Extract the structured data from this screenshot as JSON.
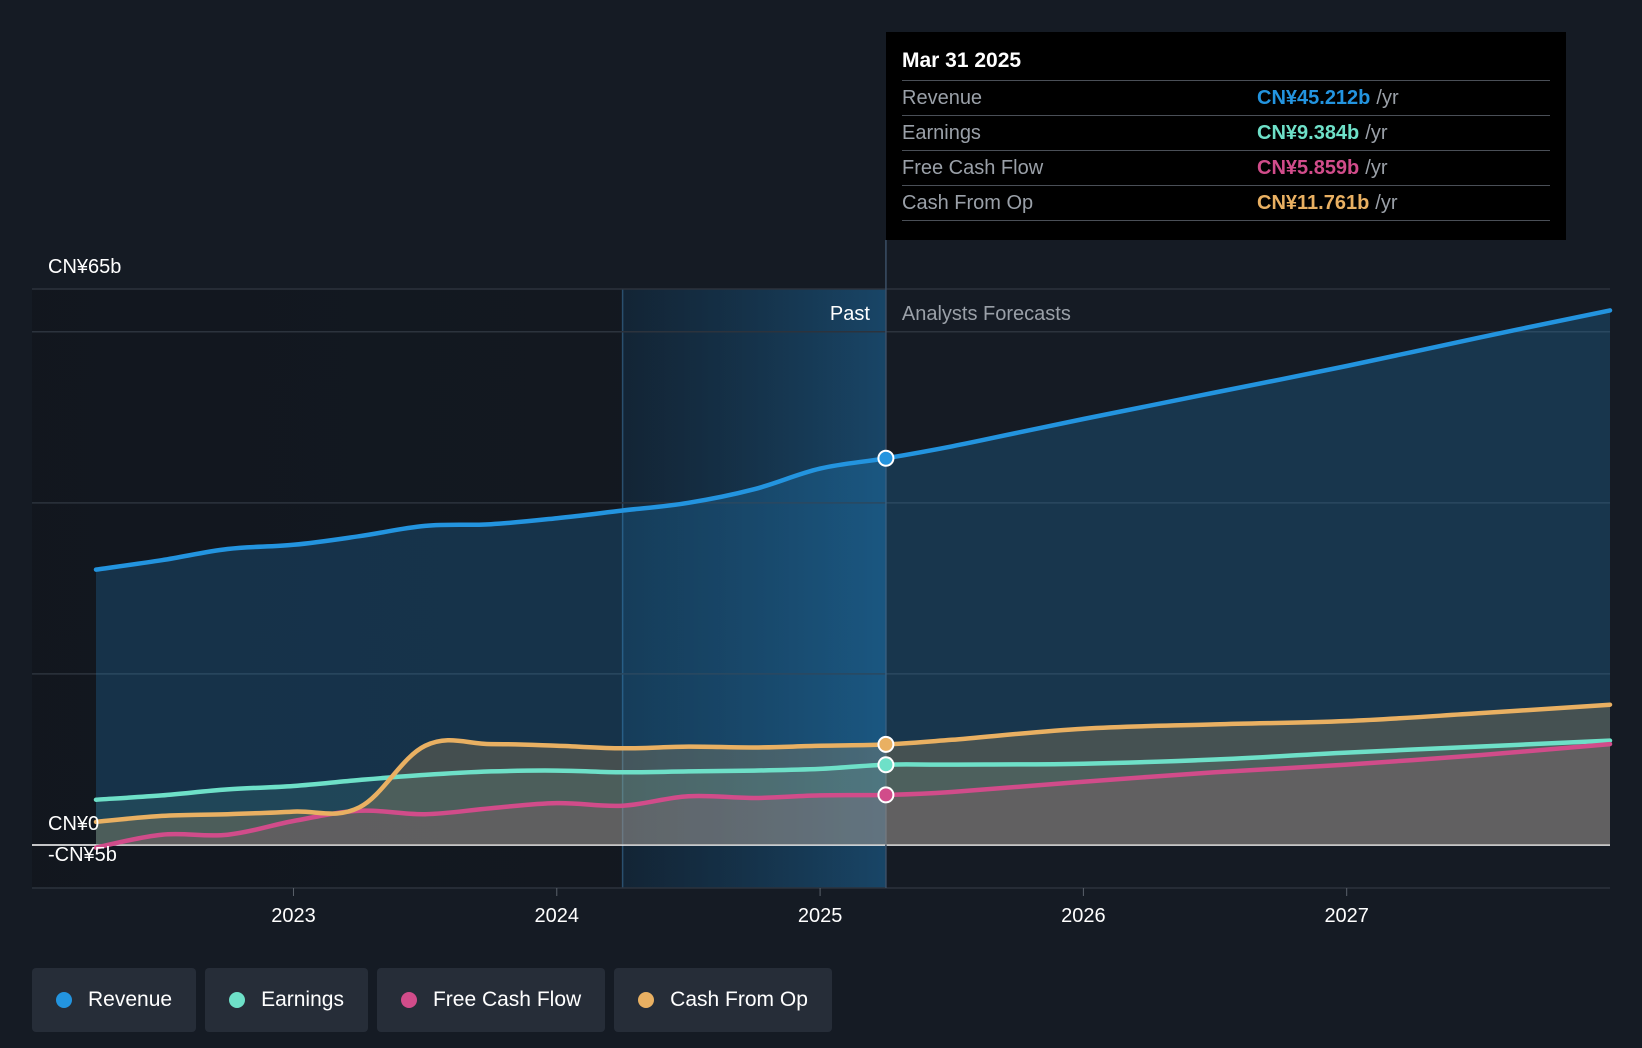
{
  "chart_data": {
    "type": "line",
    "y_unit_prefix": "CN¥",
    "ylim": [
      -5,
      65
    ],
    "y_ticks": [
      {
        "value": 65,
        "label": "CN¥65b"
      },
      {
        "value": 0,
        "label": "CN¥0"
      },
      {
        "value": -5,
        "label": "-CN¥5b"
      }
    ],
    "x_range": [
      2022.0,
      2028.0
    ],
    "x_ticks": [
      {
        "value": 2023,
        "label": "2023"
      },
      {
        "value": 2024,
        "label": "2024"
      },
      {
        "value": 2025,
        "label": "2025"
      },
      {
        "value": 2026,
        "label": "2026"
      },
      {
        "value": 2027,
        "label": "2027"
      }
    ],
    "divider_x": 2025.25,
    "highlight_start_x": 2024.25,
    "past_label": "Past",
    "forecast_label": "Analysts Forecasts",
    "series": [
      {
        "name": "Revenue",
        "color": "#2394df",
        "points": [
          [
            2022.25,
            32.2
          ],
          [
            2022.5,
            33.3
          ],
          [
            2022.75,
            34.6
          ],
          [
            2023.0,
            35.1
          ],
          [
            2023.25,
            36.1
          ],
          [
            2023.5,
            37.3
          ],
          [
            2023.75,
            37.5
          ],
          [
            2024.0,
            38.2
          ],
          [
            2024.25,
            39.1
          ],
          [
            2024.5,
            40.0
          ],
          [
            2024.75,
            41.6
          ],
          [
            2025.0,
            44.0
          ],
          [
            2025.25,
            45.212
          ],
          [
            2025.5,
            46.6
          ],
          [
            2025.75,
            48.2
          ],
          [
            2026.0,
            49.8
          ],
          [
            2026.5,
            52.9
          ],
          [
            2027.0,
            56.0
          ],
          [
            2027.5,
            59.3
          ],
          [
            2028.0,
            62.5
          ]
        ]
      },
      {
        "name": "Earnings",
        "color": "#6ee0c8",
        "points": [
          [
            2022.25,
            5.3
          ],
          [
            2022.5,
            5.8
          ],
          [
            2022.75,
            6.5
          ],
          [
            2023.0,
            6.9
          ],
          [
            2023.25,
            7.6
          ],
          [
            2023.5,
            8.2
          ],
          [
            2023.75,
            8.6
          ],
          [
            2024.0,
            8.7
          ],
          [
            2024.25,
            8.5
          ],
          [
            2024.5,
            8.6
          ],
          [
            2024.75,
            8.7
          ],
          [
            2025.0,
            8.9
          ],
          [
            2025.25,
            9.384
          ],
          [
            2025.5,
            9.4
          ],
          [
            2026.0,
            9.5
          ],
          [
            2026.5,
            10.0
          ],
          [
            2027.0,
            10.8
          ],
          [
            2027.5,
            11.5
          ],
          [
            2028.0,
            12.2
          ]
        ]
      },
      {
        "name": "Free Cash Flow",
        "color": "#d14c8a",
        "points": [
          [
            2022.25,
            -0.3
          ],
          [
            2022.5,
            1.2
          ],
          [
            2022.75,
            1.2
          ],
          [
            2023.0,
            2.8
          ],
          [
            2023.25,
            4.0
          ],
          [
            2023.5,
            3.6
          ],
          [
            2023.75,
            4.3
          ],
          [
            2024.0,
            4.9
          ],
          [
            2024.25,
            4.6
          ],
          [
            2024.5,
            5.7
          ],
          [
            2024.75,
            5.5
          ],
          [
            2025.0,
            5.8
          ],
          [
            2025.25,
            5.859
          ],
          [
            2025.5,
            6.2
          ],
          [
            2026.0,
            7.4
          ],
          [
            2026.5,
            8.5
          ],
          [
            2027.0,
            9.4
          ],
          [
            2027.5,
            10.5
          ],
          [
            2028.0,
            11.8
          ]
        ]
      },
      {
        "name": "Cash From Op",
        "color": "#e9b062",
        "points": [
          [
            2022.25,
            2.7
          ],
          [
            2022.5,
            3.4
          ],
          [
            2022.75,
            3.6
          ],
          [
            2023.0,
            3.9
          ],
          [
            2023.25,
            4.4
          ],
          [
            2023.5,
            11.6
          ],
          [
            2023.75,
            11.8
          ],
          [
            2024.0,
            11.6
          ],
          [
            2024.25,
            11.3
          ],
          [
            2024.5,
            11.5
          ],
          [
            2024.75,
            11.4
          ],
          [
            2025.0,
            11.6
          ],
          [
            2025.25,
            11.761
          ],
          [
            2025.5,
            12.3
          ],
          [
            2026.0,
            13.6
          ],
          [
            2026.5,
            14.1
          ],
          [
            2027.0,
            14.5
          ],
          [
            2027.5,
            15.4
          ],
          [
            2028.0,
            16.4
          ]
        ]
      }
    ]
  },
  "tooltip": {
    "date": "Mar 31 2025",
    "unit": "/yr",
    "rows": [
      {
        "label": "Revenue",
        "value": "CN¥45.212b",
        "color": "#2394df"
      },
      {
        "label": "Earnings",
        "value": "CN¥9.384b",
        "color": "#6ee0c8"
      },
      {
        "label": "Free Cash Flow",
        "value": "CN¥5.859b",
        "color": "#d14c8a"
      },
      {
        "label": "Cash From Op",
        "value": "CN¥11.761b",
        "color": "#e9b062"
      }
    ]
  },
  "legend": [
    {
      "label": "Revenue",
      "color": "#2394df"
    },
    {
      "label": "Earnings",
      "color": "#6ee0c8"
    },
    {
      "label": "Free Cash Flow",
      "color": "#d14c8a"
    },
    {
      "label": "Cash From Op",
      "color": "#e9b062"
    }
  ]
}
